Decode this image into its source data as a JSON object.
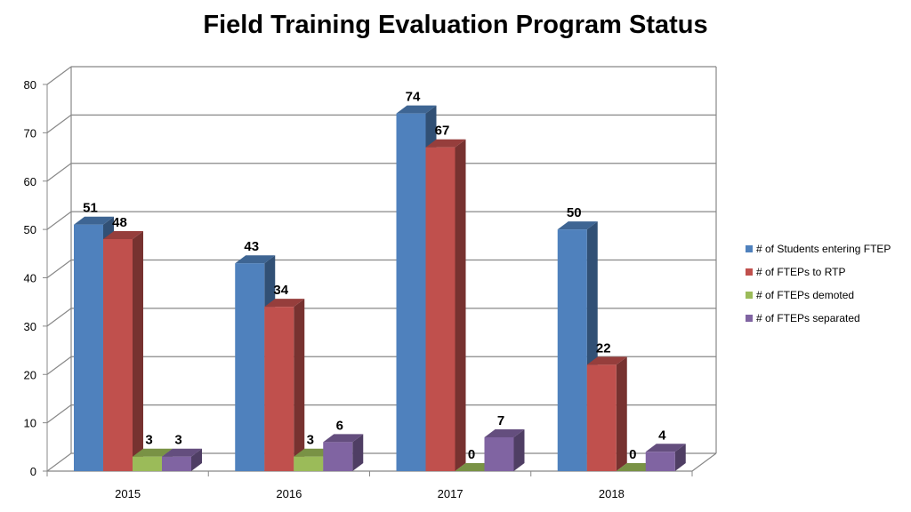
{
  "chart_data": {
    "type": "bar",
    "title": "Field Training Evaluation Program Status",
    "xlabel": "",
    "ylabel": "",
    "categories": [
      "2015",
      "2016",
      "2017",
      "2018"
    ],
    "series": [
      {
        "name": "# of Students entering FTEP",
        "values": [
          51,
          43,
          74,
          50
        ],
        "color": "#4F81BD"
      },
      {
        "name": "# of FTEPs to RTP",
        "values": [
          48,
          34,
          67,
          22
        ],
        "color": "#C0504D"
      },
      {
        "name": "# of FTEPs demoted",
        "values": [
          3,
          3,
          0,
          0
        ],
        "color": "#9BBB59"
      },
      {
        "name": "# of FTEPs separated",
        "values": [
          3,
          6,
          7,
          4
        ],
        "color": "#8064A2"
      }
    ],
    "ylim": [
      0,
      80
    ],
    "yticks": [
      0,
      10,
      20,
      30,
      40,
      50,
      60,
      70,
      80
    ],
    "ytick_labels": [
      "0",
      "10",
      "20",
      "30",
      "40",
      "50",
      "60",
      "70",
      "80"
    ],
    "grid": true,
    "legend_position": "right",
    "data_labels": [
      [
        "51",
        "43",
        "74",
        "50"
      ],
      [
        "48",
        "34",
        "67",
        "22"
      ],
      [
        "3",
        "3",
        "0",
        "0"
      ],
      [
        "3",
        "6",
        "7",
        "4"
      ]
    ],
    "style": "3d-clustered-column"
  }
}
